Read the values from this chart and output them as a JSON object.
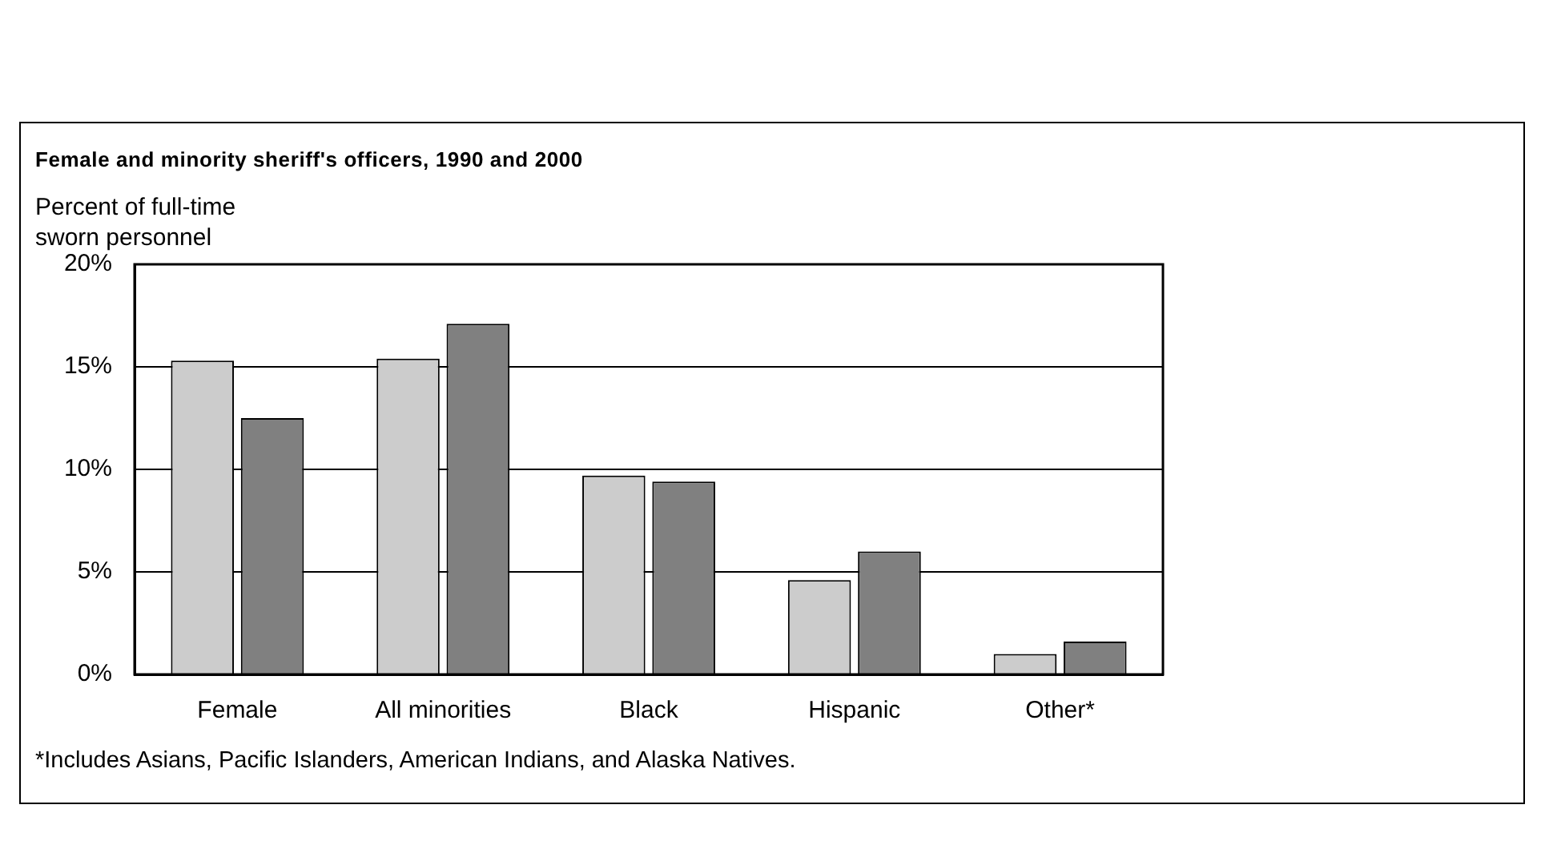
{
  "chart_data": {
    "type": "bar",
    "title": "Female and minority sheriff's officers, 1990 and 2000",
    "ylabel": "Percent of full-time sworn personnel",
    "categories": [
      "Female",
      "All minorities",
      "Black",
      "Hispanic",
      "Other*"
    ],
    "series": [
      {
        "color": "#cccccc",
        "values": [
          15.3,
          15.4,
          9.7,
          4.6,
          1.0
        ]
      },
      {
        "color": "#808080",
        "values": [
          12.5,
          17.1,
          9.4,
          6.0,
          1.6
        ]
      }
    ],
    "ylim": [
      0,
      20
    ],
    "yticks": [
      {
        "value": 0,
        "label": "0%"
      },
      {
        "value": 5,
        "label": "5%"
      },
      {
        "value": 10,
        "label": "10%"
      },
      {
        "value": 15,
        "label": "15%"
      },
      {
        "value": 20,
        "label": "20%"
      }
    ],
    "grid": "y",
    "annotations": [
      "*Includes Asians, Pacific Islanders, American Indians, and Alaska Natives."
    ]
  }
}
